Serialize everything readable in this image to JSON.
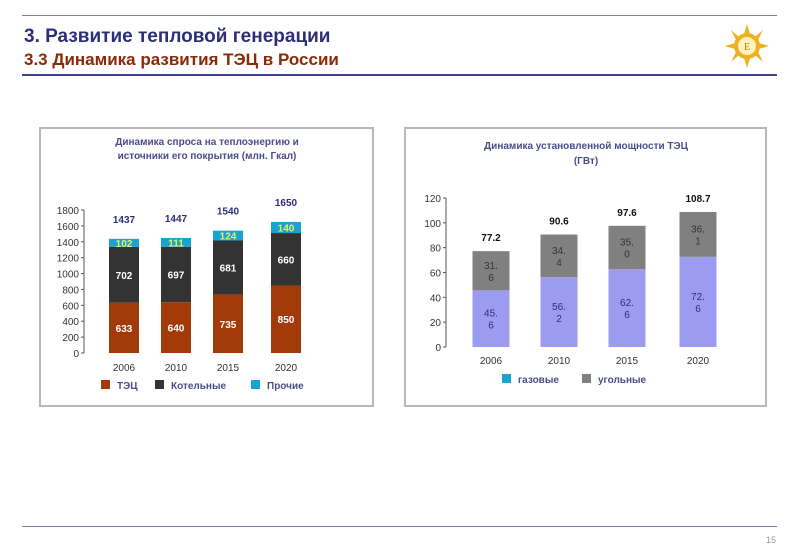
{
  "header": {
    "title": "3. Развитие тепловой генерации",
    "subtitle": "3.3 Динамика развития ТЭЦ в России"
  },
  "page_number": "15",
  "colors": {
    "title": "#2b2f7a",
    "subtitle": "#8a2a08",
    "rule": "#3d3f8f"
  },
  "chart_data": [
    {
      "type": "bar",
      "stacked": true,
      "title": [
        "Динамика спроса на теплоэнергию и",
        "источники его покрытия (млн. Гкал)"
      ],
      "categories": [
        "2006",
        "2010",
        "2015",
        "2020"
      ],
      "ylim": [
        0,
        1800
      ],
      "yticks": [
        0,
        200,
        400,
        600,
        800,
        1000,
        1200,
        1400,
        1600,
        1800
      ],
      "series": [
        {
          "name": "ТЭЦ",
          "color": "#a33a0a",
          "values": [
            633,
            640,
            735,
            850
          ],
          "label_color": "#ffffff"
        },
        {
          "name": "Котельные",
          "color": "#333333",
          "values": [
            702,
            697,
            681,
            660
          ],
          "label_color": "#ffffff"
        },
        {
          "name": "Прочие",
          "color": "#1aa3d0",
          "values": [
            102,
            111,
            124,
            140
          ],
          "label_color": "#e8f060"
        }
      ],
      "totals": [
        "1437",
        "1447",
        "1540",
        "1650"
      ],
      "total_color": "#2b2f7a",
      "legend": "bottom"
    },
    {
      "type": "bar",
      "stacked": true,
      "title": [
        "Динамика установленной мощности ТЭЦ",
        "(ГВт)"
      ],
      "categories": [
        "2006",
        "2010",
        "2015",
        "2020"
      ],
      "ylim": [
        0,
        120
      ],
      "yticks": [
        0,
        20,
        40,
        60,
        80,
        100,
        120
      ],
      "series": [
        {
          "name": "газовые",
          "color": "#9b9cf0",
          "legend_color": "#1aa3d0",
          "values": [
            45.6,
            56.2,
            62.6,
            72.6
          ],
          "labels": [
            [
              "45.",
              "6"
            ],
            [
              "56.",
              "2"
            ],
            [
              "62.",
              "6"
            ],
            [
              "72.",
              "6"
            ]
          ],
          "label_color": "#2b2f7a"
        },
        {
          "name": "угольные",
          "color": "#808080",
          "values": [
            31.6,
            34.4,
            35.0,
            36.1
          ],
          "labels": [
            [
              "31.",
              "6"
            ],
            [
              "34.",
              "4"
            ],
            [
              "35.",
              "0"
            ],
            [
              "36.",
              "1"
            ]
          ],
          "label_color": "#333333"
        }
      ],
      "totals": [
        "77.2",
        "90.6",
        "97.6",
        "108.7"
      ],
      "total_color": "#111111",
      "legend": "bottom"
    }
  ]
}
